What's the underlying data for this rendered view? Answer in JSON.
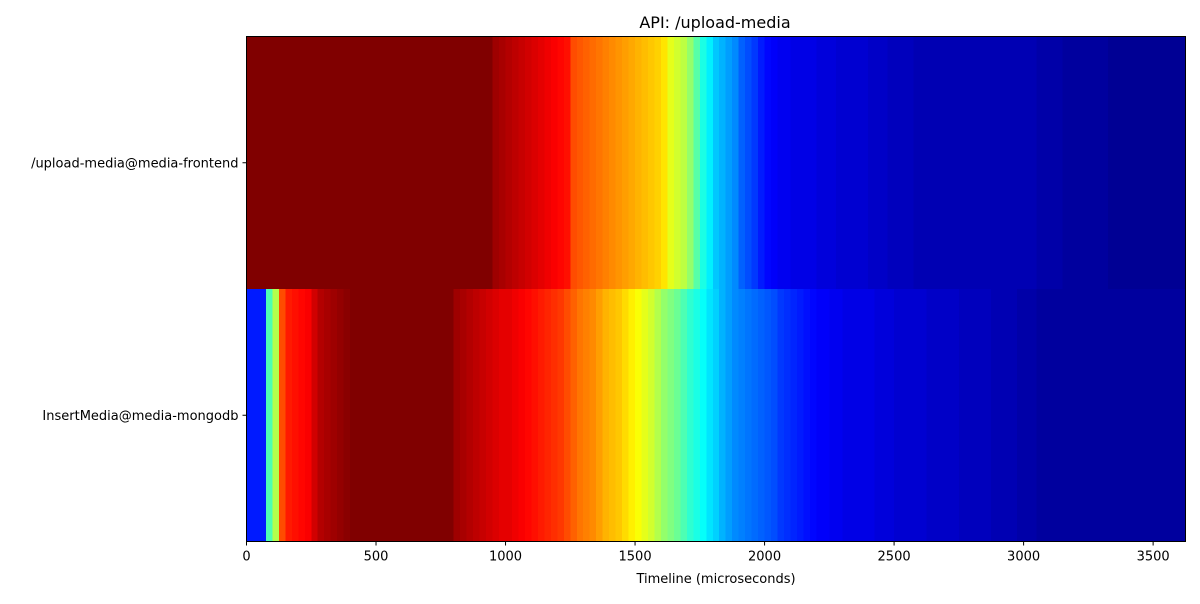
{
  "chart_data": {
    "type": "heatmap",
    "title": "API: /upload-media",
    "xlabel": "Timeline (microseconds)",
    "ylabel": "",
    "xlim": [
      0,
      3625
    ],
    "x_ticks": [
      0,
      500,
      1000,
      1500,
      2000,
      2500,
      3000,
      3500
    ],
    "x_tick_labels": [
      "0",
      "500",
      "1000",
      "1500",
      "2000",
      "2500",
      "3000",
      "3500"
    ],
    "grid": false,
    "colormap": "jet",
    "value_range": [
      0,
      1
    ],
    "rows": [
      {
        "name": "/upload-media@media-frontend",
        "bins_start": 0,
        "bin_width": 25,
        "values": [
          1.0,
          1.0,
          1.0,
          1.0,
          1.0,
          1.0,
          1.0,
          1.0,
          1.0,
          1.0,
          1.0,
          1.0,
          1.0,
          1.0,
          1.0,
          1.0,
          1.0,
          1.0,
          1.0,
          1.0,
          1.0,
          1.0,
          1.0,
          1.0,
          1.0,
          1.0,
          1.0,
          1.0,
          1.0,
          1.0,
          1.0,
          1.0,
          1.0,
          1.0,
          1.0,
          1.0,
          1.0,
          1.0,
          0.97,
          0.96,
          0.95,
          0.94,
          0.93,
          0.92,
          0.91,
          0.9,
          0.89,
          0.88,
          0.87,
          0.86,
          0.8,
          0.79,
          0.78,
          0.77,
          0.76,
          0.75,
          0.74,
          0.73,
          0.72,
          0.71,
          0.7,
          0.69,
          0.68,
          0.67,
          0.65,
          0.6,
          0.58,
          0.56,
          0.52,
          0.46,
          0.4,
          0.36,
          0.32,
          0.3,
          0.28,
          0.26,
          0.22,
          0.2,
          0.18,
          0.15,
          0.13,
          0.12,
          0.11,
          0.11,
          0.1,
          0.1,
          0.1,
          0.1,
          0.09,
          0.09,
          0.09,
          0.08,
          0.08,
          0.08,
          0.08,
          0.08,
          0.07,
          0.07,
          0.07,
          0.06,
          0.06,
          0.06,
          0.06,
          0.05,
          0.05,
          0.05,
          0.05,
          0.05,
          0.05,
          0.05,
          0.05,
          0.05,
          0.05,
          0.05,
          0.05,
          0.05,
          0.05,
          0.05,
          0.05,
          0.05,
          0.05,
          0.05,
          0.04,
          0.04,
          0.04,
          0.04,
          0.03,
          0.03,
          0.03,
          0.03,
          0.03,
          0.03,
          0.03,
          0.02,
          0.02,
          0.02,
          0.02,
          0.02,
          0.02,
          0.02,
          0.02,
          0.02,
          0.02,
          0.02,
          0.02,
          0.02
        ]
      },
      {
        "name": "InsertMedia@media-mongodb",
        "bins_start": 0,
        "bin_width": 25,
        "values": [
          0.15,
          0.15,
          0.15,
          0.45,
          0.55,
          0.8,
          0.85,
          0.86,
          0.87,
          0.88,
          0.92,
          0.95,
          0.96,
          0.97,
          0.98,
          0.99,
          1.0,
          1.0,
          1.0,
          1.0,
          1.0,
          1.0,
          1.0,
          1.0,
          1.0,
          1.0,
          1.0,
          1.0,
          1.0,
          1.0,
          1.0,
          1.0,
          0.97,
          0.96,
          0.95,
          0.94,
          0.93,
          0.92,
          0.91,
          0.9,
          0.9,
          0.89,
          0.88,
          0.87,
          0.86,
          0.85,
          0.84,
          0.83,
          0.82,
          0.8,
          0.78,
          0.76,
          0.75,
          0.74,
          0.72,
          0.7,
          0.69,
          0.68,
          0.66,
          0.64,
          0.62,
          0.6,
          0.58,
          0.55,
          0.52,
          0.5,
          0.48,
          0.45,
          0.42,
          0.4,
          0.38,
          0.35,
          0.33,
          0.3,
          0.28,
          0.26,
          0.25,
          0.24,
          0.23,
          0.22,
          0.21,
          0.2,
          0.18,
          0.17,
          0.16,
          0.15,
          0.14,
          0.13,
          0.12,
          0.12,
          0.11,
          0.11,
          0.1,
          0.1,
          0.1,
          0.1,
          0.1,
          0.09,
          0.09,
          0.09,
          0.08,
          0.08,
          0.08,
          0.08,
          0.08,
          0.07,
          0.07,
          0.07,
          0.07,
          0.07,
          0.06,
          0.06,
          0.06,
          0.06,
          0.06,
          0.05,
          0.05,
          0.05,
          0.05,
          0.04,
          0.04,
          0.04,
          0.03,
          0.03,
          0.03,
          0.03,
          0.03,
          0.03,
          0.03,
          0.03,
          0.03,
          0.03,
          0.03,
          0.03,
          0.03,
          0.03,
          0.03,
          0.03,
          0.03,
          0.03,
          0.03,
          0.03,
          0.03,
          0.03,
          0.03
        ]
      }
    ]
  }
}
